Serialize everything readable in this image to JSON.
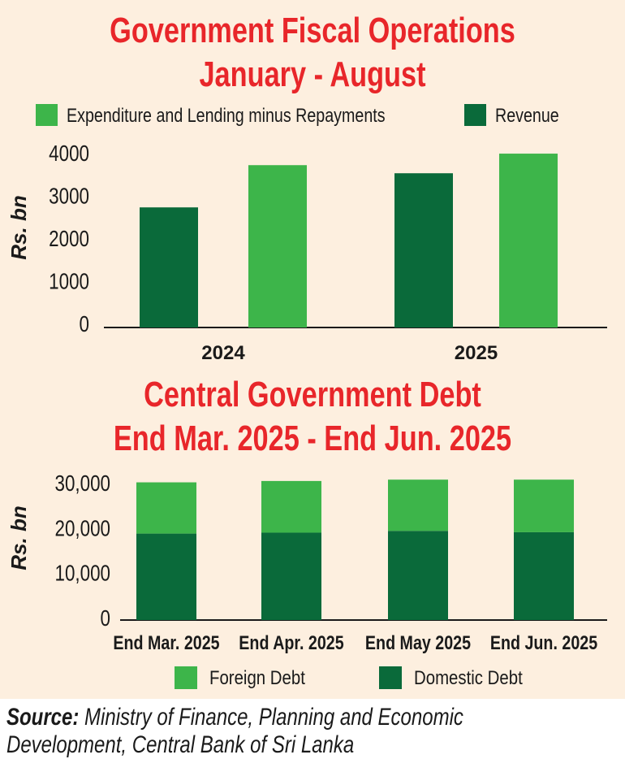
{
  "colors": {
    "title": "#e8262a",
    "light_green": "#3db54a",
    "dark_green": "#0a6a3a",
    "background": "#fdefdf"
  },
  "chart_data": [
    {
      "type": "bar",
      "title": "Government Fiscal Operations",
      "subtitle": "January - August",
      "ylabel": "Rs. bn",
      "xlabel": "",
      "categories": [
        "2024",
        "2025"
      ],
      "yticks": [
        "0",
        "1000",
        "2000",
        "3000",
        "4000"
      ],
      "ylim": [
        0,
        4000
      ],
      "legend_position": "top",
      "series": [
        {
          "name": "Revenue",
          "color": "#0a6a3a",
          "values": [
            2720,
            3520
          ]
        },
        {
          "name": "Expenditure and Lending minus Repayments",
          "color": "#3db54a",
          "values": [
            3710,
            3980
          ]
        }
      ],
      "legend": [
        "Expenditure and Lending minus Repayments",
        "Revenue"
      ]
    },
    {
      "type": "bar",
      "stacked": true,
      "title": "Central Government Debt",
      "subtitle": "End Mar. 2025 - End Jun. 2025",
      "ylabel": "Rs. bn",
      "xlabel": "",
      "categories": [
        "End Mar. 2025",
        "End Apr. 2025",
        "End May 2025",
        "End Jun. 2025"
      ],
      "yticks": [
        "0",
        "10,000",
        "20,000",
        "30,000"
      ],
      "ylim": [
        0,
        30000
      ],
      "legend_position": "bottom",
      "series": [
        {
          "name": "Domestic Debt",
          "color": "#0a6a3a",
          "values": [
            18700,
            18900,
            19300,
            19000
          ]
        },
        {
          "name": "Foreign Debt",
          "color": "#3db54a",
          "values": [
            11400,
            11500,
            11400,
            11700
          ]
        }
      ],
      "legend": [
        "Foreign Debt",
        "Domestic Debt"
      ]
    }
  ],
  "source": {
    "label": "Source:",
    "text": " Ministry of Finance, Planning and Economic",
    "text2": "Development, Central Bank of Sri Lanka"
  }
}
